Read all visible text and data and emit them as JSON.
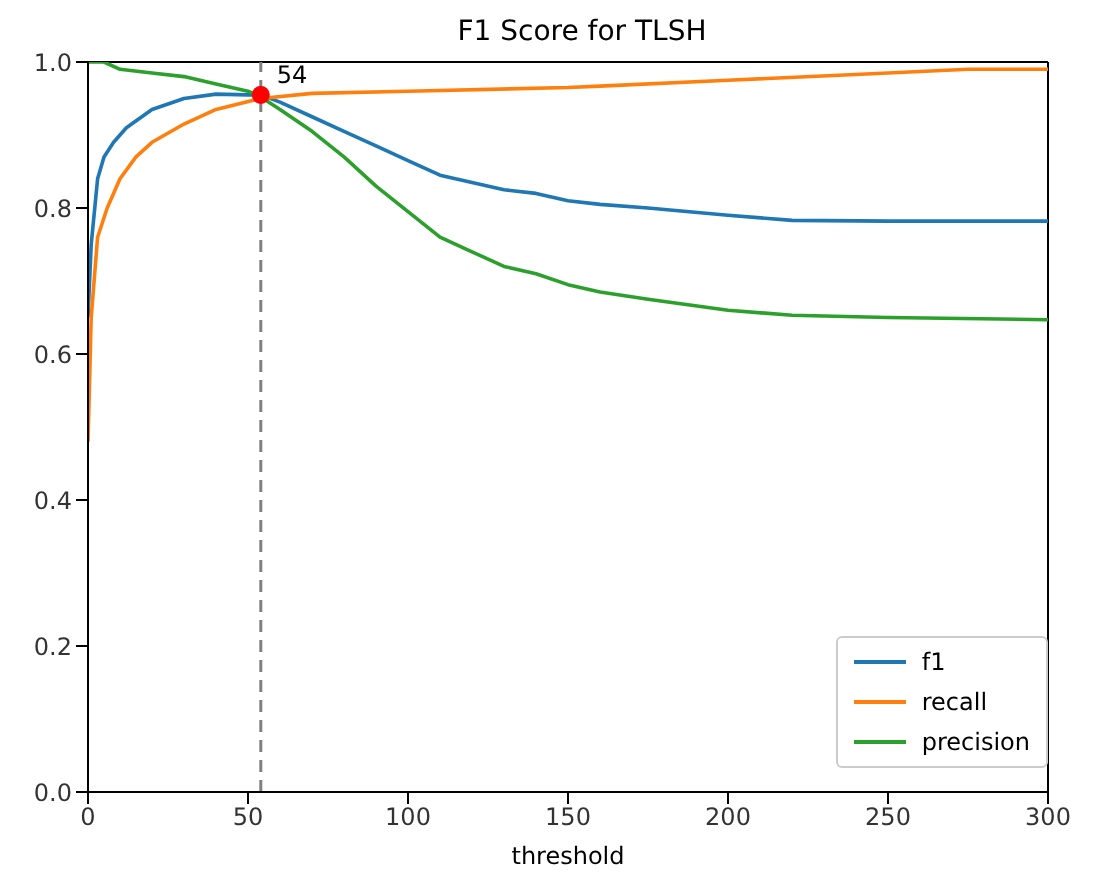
{
  "chart_data": {
    "type": "line",
    "title": "F1 Score for TLSH",
    "xlabel": "threshold",
    "xlim": [
      0,
      300
    ],
    "xticks": [
      0,
      50,
      100,
      150,
      200,
      250,
      300
    ],
    "ylim": [
      0,
      1
    ],
    "yticks": [
      {
        "value": 0,
        "label": "0.0"
      },
      0.2,
      0.4,
      0.6,
      0.8,
      {
        "value": 1,
        "label": "1.0"
      }
    ],
    "legend": "bottom right",
    "marker": "none",
    "line_style": "solid",
    "series": [
      {
        "name": "f1",
        "color": "#1f77b4",
        "x": [
          0,
          1,
          3,
          5,
          8,
          12,
          20,
          30,
          40,
          50,
          54,
          60,
          70,
          80,
          90,
          100,
          110,
          120,
          130,
          140,
          150,
          160,
          175,
          200,
          220,
          250,
          300
        ],
        "values": [
          0.65,
          0.75,
          0.84,
          0.87,
          0.89,
          0.91,
          0.935,
          0.95,
          0.956,
          0.955,
          0.955,
          0.945,
          0.925,
          0.905,
          0.885,
          0.865,
          0.845,
          0.835,
          0.825,
          0.82,
          0.81,
          0.805,
          0.8,
          0.79,
          0.783,
          0.782,
          0.782
        ]
      },
      {
        "name": "recall",
        "color": "#ff7f0e",
        "x": [
          0,
          1,
          3,
          6,
          10,
          15,
          20,
          30,
          40,
          54,
          70,
          100,
          150,
          160,
          200,
          250,
          275,
          300
        ],
        "values": [
          0.48,
          0.65,
          0.76,
          0.8,
          0.84,
          0.87,
          0.89,
          0.915,
          0.935,
          0.95,
          0.957,
          0.96,
          0.965,
          0.967,
          0.975,
          0.985,
          0.99,
          0.99
        ]
      },
      {
        "name": "precision",
        "color": "#2ca02c",
        "x": [
          0,
          5,
          10,
          20,
          30,
          40,
          50,
          54,
          60,
          70,
          80,
          90,
          100,
          110,
          120,
          130,
          140,
          150,
          160,
          175,
          200,
          220,
          250,
          300
        ],
        "values": [
          1.0,
          1.0,
          0.99,
          0.985,
          0.98,
          0.97,
          0.96,
          0.952,
          0.935,
          0.905,
          0.87,
          0.83,
          0.795,
          0.76,
          0.74,
          0.72,
          0.71,
          0.695,
          0.685,
          0.675,
          0.66,
          0.653,
          0.65,
          0.647
        ]
      },
      {
        "type": "scatter",
        "marker": "circle",
        "color": "#ff0000",
        "x": [
          54
        ],
        "values": [
          0.955
        ]
      }
    ],
    "ref_lines": [
      {
        "axis": "x",
        "value": 54,
        "color": "#808080",
        "line_style": "dashed"
      }
    ],
    "annotations": [
      {
        "text": "54",
        "x": 54,
        "y": 0.955
      }
    ]
  }
}
